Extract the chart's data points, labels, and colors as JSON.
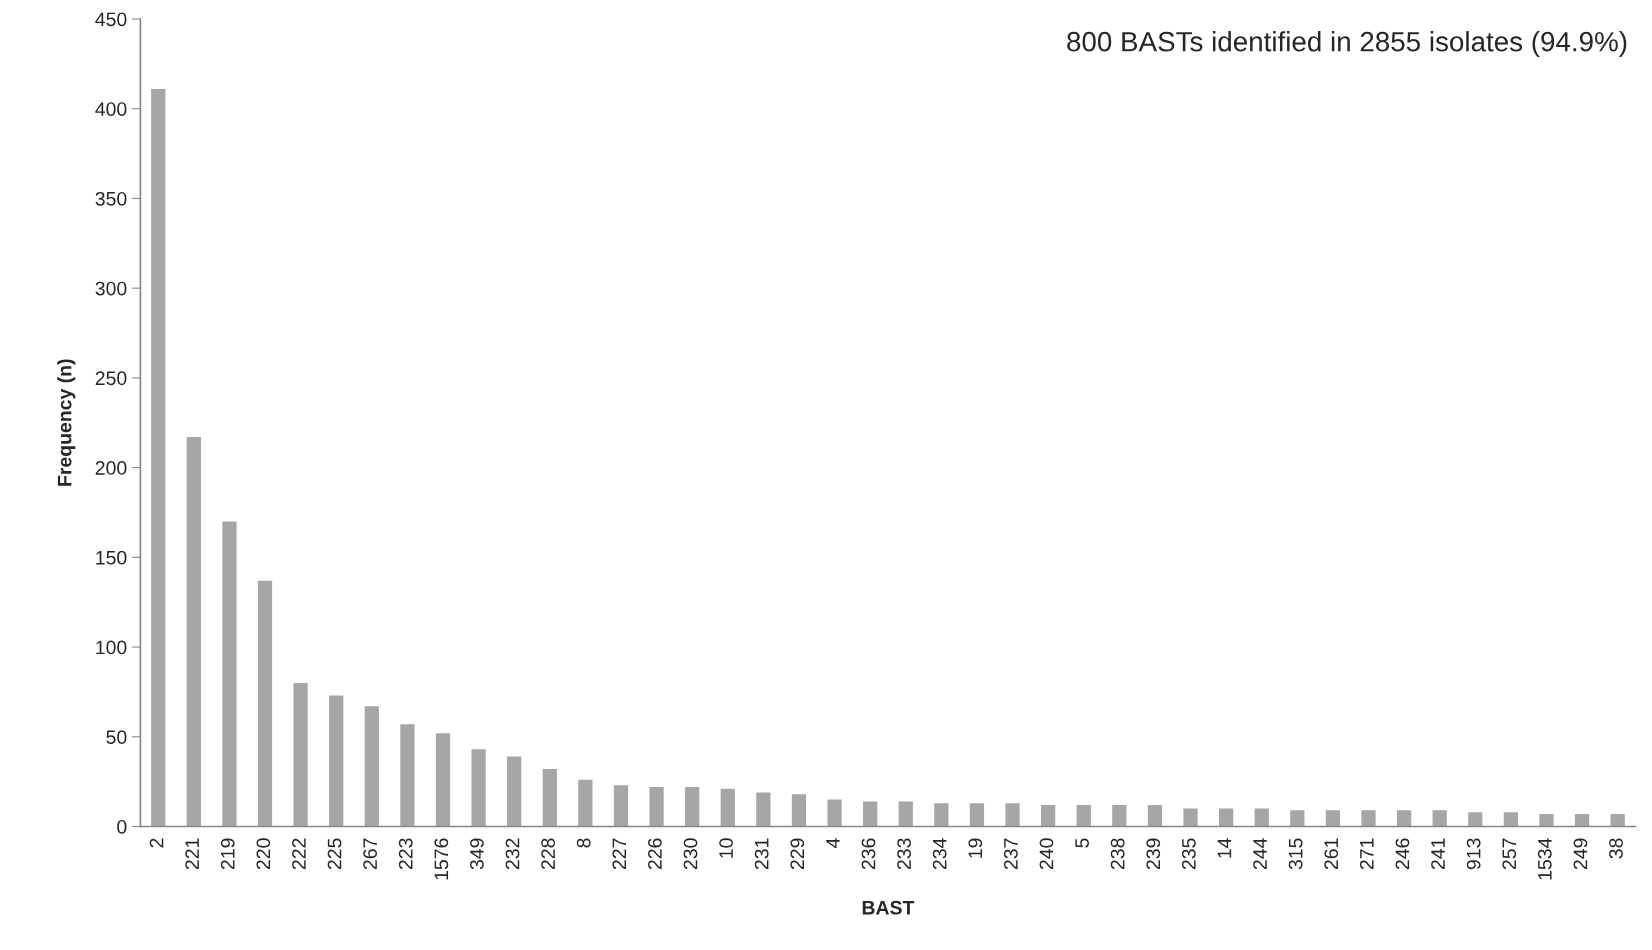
{
  "chart_data": {
    "type": "bar",
    "xlabel": "BAST",
    "ylabel": "Frequency (n)",
    "annotations": [
      "800 BASTs identified in 2855 isolates (94.9%)"
    ],
    "categories": [
      "2",
      "221",
      "219",
      "220",
      "222",
      "225",
      "267",
      "223",
      "1576",
      "349",
      "232",
      "228",
      "8",
      "227",
      "226",
      "230",
      "10",
      "231",
      "229",
      "4",
      "236",
      "233",
      "234",
      "19",
      "237",
      "240",
      "5",
      "238",
      "239",
      "235",
      "14",
      "244",
      "315",
      "261",
      "271",
      "246",
      "241",
      "913",
      "257",
      "1534",
      "249",
      "38"
    ],
    "values": [
      411,
      217,
      170,
      137,
      80,
      73,
      67,
      57,
      52,
      43,
      39,
      32,
      26,
      23,
      22,
      22,
      21,
      19,
      18,
      15,
      14,
      14,
      13,
      13,
      13,
      12,
      12,
      12,
      12,
      10,
      10,
      10,
      9,
      9,
      9,
      9,
      9,
      8,
      8,
      7,
      7,
      7
    ],
    "color": "#a6a6a6",
    "ylim": [
      0,
      450
    ],
    "yticks": [
      0,
      50,
      100,
      150,
      200,
      250,
      300,
      350,
      400,
      450
    ],
    "grid": false,
    "legend": false
  }
}
